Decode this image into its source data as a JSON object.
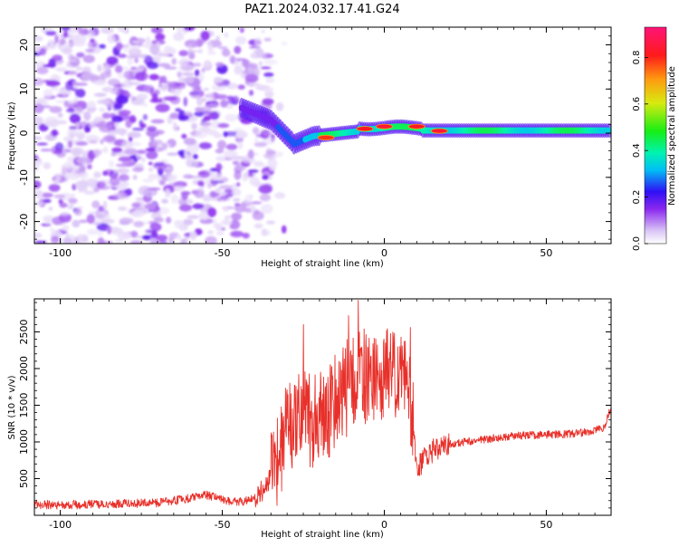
{
  "title": "PAZ1.2024.032.17.41.G24",
  "chart_data": [
    {
      "type": "heatmap",
      "xlabel": "Height of straight line (km)",
      "ylabel": "Frequency (Hz)",
      "xlim": [
        -108,
        70
      ],
      "ylim": [
        -25,
        24
      ],
      "x_ticks": [
        -100,
        -50,
        0,
        50
      ],
      "y_ticks": [
        -20,
        -10,
        0,
        10,
        20
      ],
      "colorbar": {
        "label": "Normalized spectral amplitude",
        "range": [
          0,
          0.93
        ],
        "ticks": [
          "0.0",
          "0.2",
          "0.4",
          "0.6",
          "0.8"
        ],
        "colormap": "white-purple-blue-cyan-green-yellow-orange-red-magenta"
      },
      "description_regions": [
        {
          "x_range": [
            -108,
            -35
          ],
          "y_range": [
            -25,
            24
          ],
          "amplitude": "low (0.05-0.25), speckled noise"
        },
        {
          "x_range": [
            -35,
            -20
          ],
          "y_center": -2,
          "amplitude": "0.2-0.4, spectral line curving down"
        },
        {
          "x_range": [
            -20,
            70
          ],
          "y_center": 0.5,
          "amplitude": "0.4-0.9, narrow band near 0-1 Hz"
        }
      ],
      "peaks": [
        {
          "x": -18,
          "y": -1,
          "amplitude": 0.85
        },
        {
          "x": -6,
          "y": 1,
          "amplitude": 0.88
        },
        {
          "x": 0,
          "y": 1.5,
          "amplitude": 0.9
        },
        {
          "x": 10,
          "y": 1.5,
          "amplitude": 0.88
        },
        {
          "x": 17,
          "y": 0.5,
          "amplitude": 0.9
        }
      ]
    },
    {
      "type": "line",
      "xlabel": "Height of straight line (km)",
      "ylabel": "SNR (10 * v/v)",
      "xlim": [
        -108,
        70
      ],
      "ylim": [
        0,
        2950
      ],
      "x_ticks": [
        -100,
        -50,
        0,
        50
      ],
      "y_ticks": [
        500,
        1000,
        1500,
        2000,
        2500
      ],
      "color": "#e8302a",
      "series": [
        {
          "x": [
            -108,
            -100,
            -90,
            -80,
            -70,
            -60,
            -55,
            -50,
            -45,
            -40,
            -38,
            -35,
            -32,
            -30,
            -28,
            -25,
            -22,
            -20,
            -18,
            -15,
            -12,
            -10,
            -8,
            -6,
            -4,
            -2,
            0,
            2,
            4,
            6,
            8,
            9,
            10,
            12,
            15,
            18,
            20,
            25,
            30,
            35,
            40,
            45,
            50,
            55,
            60,
            65,
            68,
            70
          ],
          "y": [
            150,
            140,
            150,
            160,
            170,
            230,
            280,
            210,
            180,
            230,
            320,
            520,
            900,
            1300,
            1100,
            1500,
            1200,
            1400,
            1350,
            1600,
            1700,
            1800,
            1900,
            1850,
            1750,
            1800,
            1900,
            1950,
            2000,
            1900,
            1650,
            1200,
            620,
            750,
            880,
            930,
            970,
            1000,
            1030,
            1060,
            1080,
            1090,
            1100,
            1100,
            1120,
            1150,
            1200,
            1480
          ]
        }
      ],
      "spikes": [
        {
          "x": -25,
          "y": 2600
        },
        {
          "x": -11,
          "y": 2720
        },
        {
          "x": -8,
          "y": 2930
        },
        {
          "x": 8,
          "y": 2560
        }
      ]
    }
  ]
}
